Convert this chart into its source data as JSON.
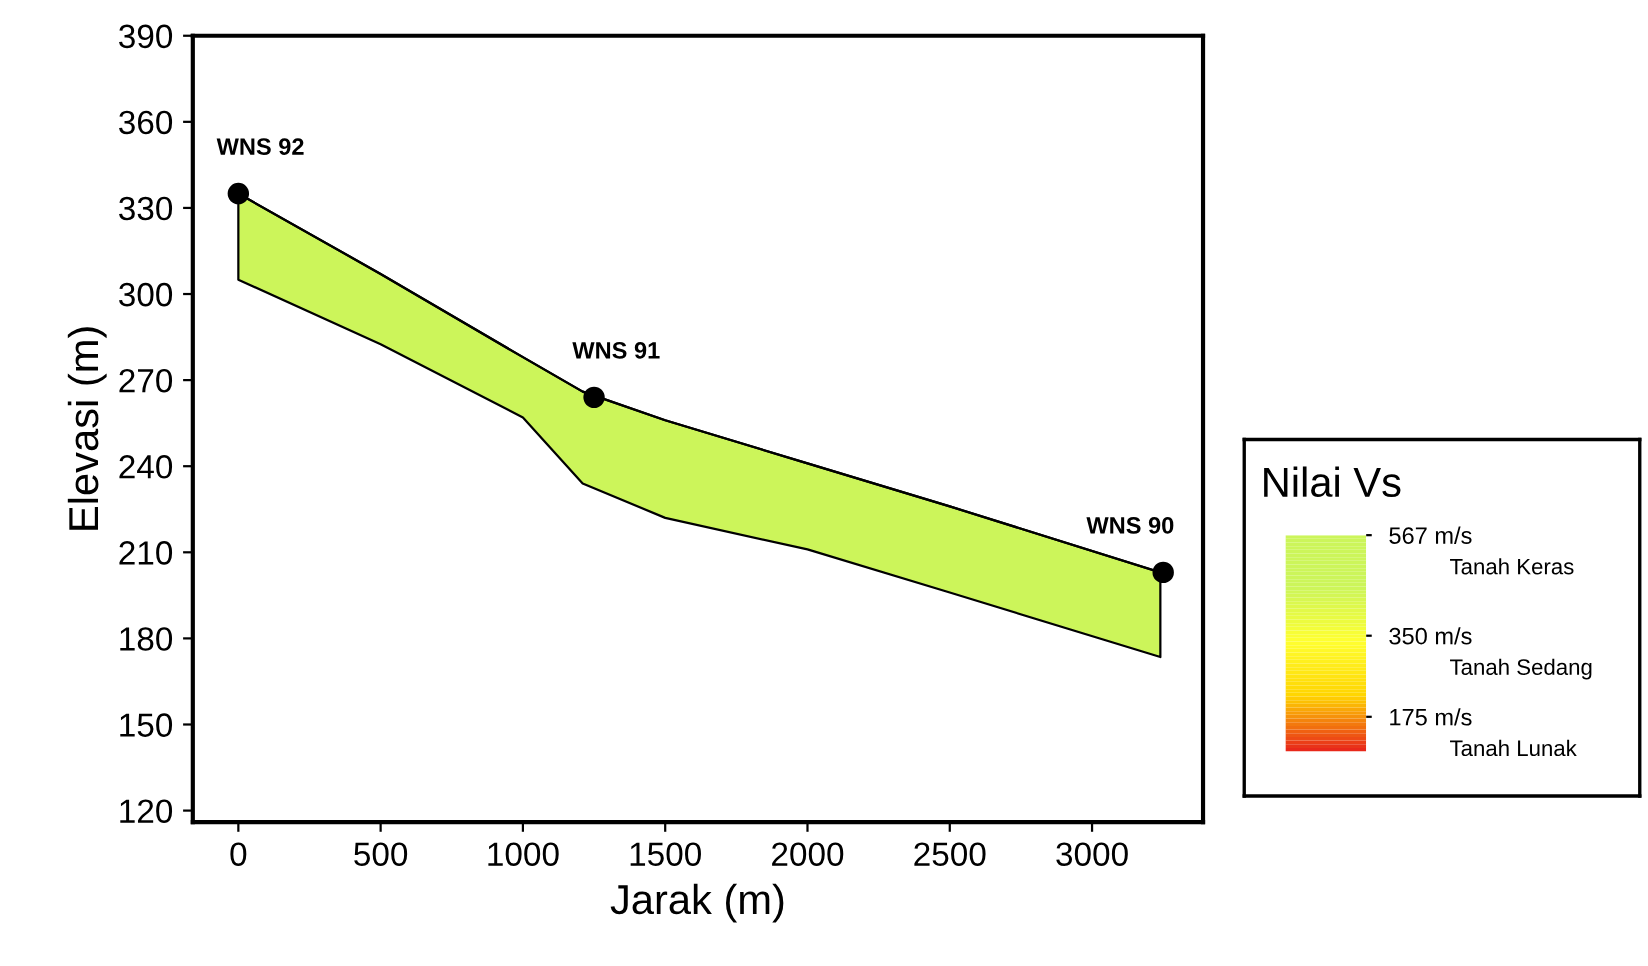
{
  "chart_data": {
    "type": "line",
    "xlabel": "Jarak (m)",
    "ylabel": "Elevasi (m)",
    "clabel": "Nilai Vs",
    "xlim": [
      -160,
      3390
    ],
    "xticks": [
      0,
      500,
      1000,
      1500,
      2000,
      2500,
      3000
    ],
    "ylim": [
      116,
      390
    ],
    "yticks": [
      120,
      150,
      180,
      210,
      240,
      270,
      300,
      330,
      360,
      390
    ],
    "clim": [
      100,
      567
    ],
    "cticks": [
      {
        "value": 567,
        "label": "567 m/s"
      },
      {
        "value": 350,
        "label": "350 m/s"
      },
      {
        "value": 175,
        "label": "175 m/s"
      }
    ],
    "series": [
      {
        "color": "#000000",
        "x": [
          0,
          500,
          1000,
          1210,
          1500,
          2000,
          2500,
          3240
        ],
        "values": [
          335,
          307,
          278,
          266,
          256,
          241,
          226,
          203
        ],
        "lower": [
          305,
          282.5,
          257,
          234,
          222,
          211,
          196,
          173.5
        ],
        "upper": [
          335,
          307,
          278,
          266,
          256,
          241,
          226,
          203
        ]
      },
      {
        "type": "scatter",
        "color": "#000000",
        "marker": "circle",
        "x": [
          0,
          1250,
          3250
        ],
        "values": [
          335,
          264,
          203
        ]
      }
    ],
    "annotations": [
      {
        "text": "WNS 92",
        "x": 0,
        "y": 335
      },
      {
        "text": "WNS 91",
        "x": 1250,
        "y": 264
      },
      {
        "text": "WNS 90",
        "x": 3250,
        "y": 203
      },
      "Tanah Keras",
      "Tanah Sedang",
      "Tanah Lunak"
    ],
    "grid": false
  }
}
